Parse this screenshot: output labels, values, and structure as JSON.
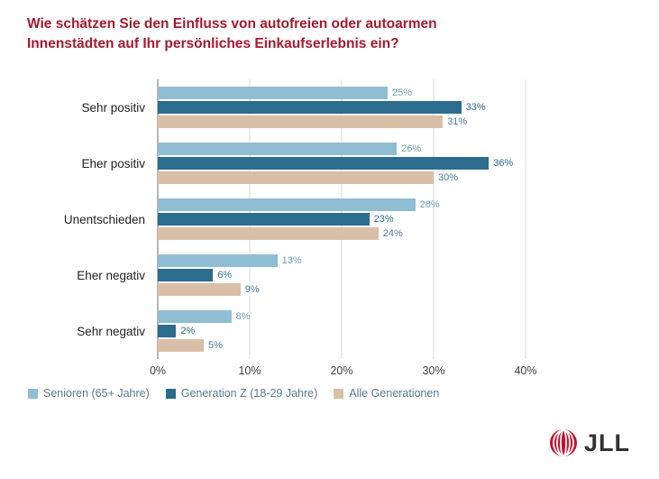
{
  "title": {
    "line1": "Wie schätzen Sie den Einfluss von autofreien oder autoarmen",
    "line2": "Innenstädten auf Ihr persönliches Einkaufserlebnis ein?",
    "color": "#A6192E"
  },
  "chart_data": {
    "type": "bar",
    "orientation": "horizontal",
    "title": "Wie schätzen Sie den Einfluss von autofreien oder autoarmen Innenstädten auf Ihr persönliches Einkaufserlebnis ein?",
    "categories": [
      "Sehr positiv",
      "Eher positiv",
      "Unentschieden",
      "Eher negativ",
      "Sehr negativ"
    ],
    "series": [
      {
        "name": "Senioren (65+ Jahre)",
        "color": "#8FBDD3",
        "label_color": "#6FA0B6",
        "values": [
          25,
          26,
          28,
          13,
          8
        ]
      },
      {
        "name": "Generation Z (18-29 Jahre)",
        "color": "#2B6C8F",
        "label_color": "#2B6C8F",
        "values": [
          33,
          36,
          23,
          6,
          2
        ]
      },
      {
        "name": "Alle Generationen",
        "color": "#D9BFA7",
        "label_color": "#4E7E9C",
        "values": [
          31,
          30,
          24,
          9,
          5
        ]
      }
    ],
    "x_ticks": [
      "0%",
      "10%",
      "20%",
      "30%",
      "40%"
    ],
    "x_max": 40,
    "value_suffix": "%",
    "grid": true,
    "legend_position": "bottom"
  },
  "logo": {
    "text": "JLL",
    "globe_color": "#C8102E"
  }
}
